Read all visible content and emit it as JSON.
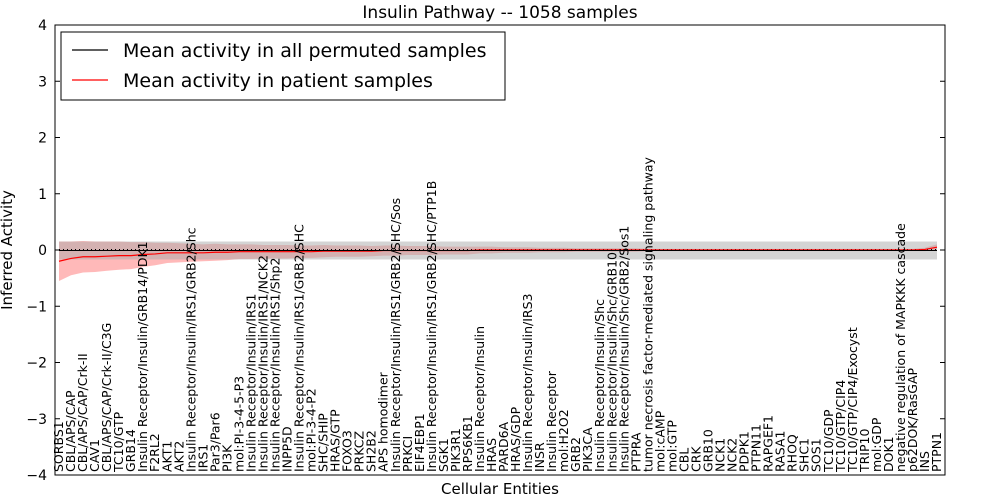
{
  "chart_data": {
    "type": "line",
    "title": "Insulin Pathway -- 1058 samples",
    "xlabel": "Cellular Entities",
    "ylabel": "Inferred Activity",
    "ylim": [
      -4,
      4
    ],
    "yticks": [
      -4,
      -3,
      -2,
      -1,
      0,
      1,
      2,
      3,
      4
    ],
    "ytick_labels": [
      "−4",
      "−3",
      "−2",
      "−1",
      "0",
      "1",
      "2",
      "3",
      "4"
    ],
    "legend": {
      "position": "top-left",
      "entries": [
        {
          "label": "Mean activity in all permuted samples",
          "color": "#000000"
        },
        {
          "label": "Mean activity in patient samples",
          "color": "#ff0000"
        }
      ]
    },
    "colors": {
      "permuted_line": "#000000",
      "patient_line": "#ff0000",
      "permuted_band": "#aaaaaa",
      "patient_band": "#ff8080"
    },
    "entities": [
      "SORBS1",
      "CBL/APS/CAP",
      "CBL/APS/CAP/Crk-II",
      "CAV1",
      "CBL/APS/CAP/Crk-II/C3G",
      "TC10/GTP",
      "GRB14",
      "Insulin Receptor/Insulin/GRB14/PDK1",
      "F2RL2",
      "AKT1",
      "AKT2",
      "Insulin Receptor/Insulin/IRS1/GRB2/Shc",
      "IRS1",
      "Par3/Par6",
      "PI3K",
      "mol:PI-3-4-5-P3",
      "Insulin Receptor/Insulin/IRS1",
      "Insulin Receptor/Insulin/IRS1/NCK2",
      "Insulin Receptor/Insulin/IRS1/Shp2",
      "INPP5D",
      "Insulin Receptor/Insulin/IRS1/GRB2/SHC",
      "mol:PI-3-4-P2",
      "SHC/SHIP",
      "HRAS/GTP",
      "FOXO3",
      "PRKCZ",
      "SH2B2",
      "APS homodimer",
      "Insulin Receptor/Insulin/IRS1/GRB2/SHC/Sos",
      "PRKCI",
      "EIF4EBP1",
      "Insulin Receptor/Insulin/IRS1/GRB2/SHC/PTP1B",
      "SGK1",
      "PIK3R1",
      "RPS6KB1",
      "Insulin Receptor/Insulin",
      "HRAS",
      "PARD6A",
      "HRAS/GDP",
      "Insulin Receptor/Insulin/IRS3",
      "INSR",
      "Insulin Receptor",
      "mol:H2O2",
      "GRB2",
      "PIK3CA",
      "Insulin Receptor/Insulin/Shc",
      "Insulin Receptor/Insulin/Shc/GRB10",
      "Insulin Receptor/Insulin/Shc/GRB2/Sos1",
      "PTPRA",
      "tumor necrosis factor-mediated signaling pathway",
      "mol:cAMP",
      "mol:GTP",
      "CBL",
      "CRK",
      "GRB10",
      "NCK1",
      "NCK2",
      "PDPK1",
      "PTPN11",
      "RAPGEF1",
      "RASA1",
      "RHOQ",
      "SHC1",
      "SOS1",
      "TC10/GDP",
      "TC10/GTP/CIP4",
      "TC10/GTP/CIP4/Exocyst",
      "TRIP10",
      "mol:GDP",
      "DOK1",
      "negative regulation of MAPKKK cascade",
      "p62DOK/RasGAP",
      "INS",
      "PTPN1"
    ],
    "series": [
      {
        "name": "Mean activity in patient samples",
        "values": [
          -0.2,
          -0.15,
          -0.12,
          -0.12,
          -0.11,
          -0.1,
          -0.1,
          -0.08,
          -0.07,
          -0.05,
          -0.05,
          -0.05,
          -0.05,
          -0.04,
          -0.04,
          -0.03,
          -0.03,
          -0.03,
          -0.03,
          -0.03,
          -0.03,
          -0.03,
          -0.02,
          -0.02,
          -0.02,
          -0.02,
          -0.02,
          -0.01,
          -0.01,
          -0.01,
          -0.01,
          -0.01,
          -0.01,
          -0.01,
          -0.01,
          0,
          0,
          0,
          0,
          0,
          0,
          0,
          0,
          0,
          0,
          0,
          0,
          0,
          0,
          0,
          0,
          0,
          0,
          0,
          0,
          0,
          0,
          0,
          0,
          0,
          0,
          0,
          0,
          0,
          0,
          0,
          0,
          0,
          0,
          0,
          0,
          0,
          0.01,
          0.05
        ],
        "band": [
          0.35,
          0.3,
          0.28,
          0.27,
          0.26,
          0.25,
          0.24,
          0.22,
          0.2,
          0.18,
          0.17,
          0.16,
          0.15,
          0.15,
          0.14,
          0.13,
          0.13,
          0.12,
          0.12,
          0.12,
          0.11,
          0.11,
          0.11,
          0.1,
          0.1,
          0.1,
          0.09,
          0.09,
          0.09,
          0.08,
          0.08,
          0.08,
          0.07,
          0.07,
          0.07,
          0.06,
          0.06,
          0.05,
          0.05,
          0.05,
          0.04,
          0.04,
          0.04,
          0.03,
          0.03,
          0.03,
          0.03,
          0.03,
          0.03,
          0.02,
          0.02,
          0.02,
          0.02,
          0.02,
          0.02,
          0.02,
          0.02,
          0.02,
          0.02,
          0.02,
          0.02,
          0.02,
          0.02,
          0.02,
          0.02,
          0.02,
          0.02,
          0.02,
          0.02,
          0.02,
          0.02,
          0.02,
          0.03,
          0.05
        ]
      },
      {
        "name": "Mean activity in all permuted samples",
        "values": [
          -0.01,
          -0.01,
          -0.01,
          -0.01,
          -0.01,
          -0.01,
          -0.01,
          -0.01,
          -0.01,
          -0.01,
          -0.01,
          -0.01,
          -0.01,
          -0.01,
          -0.01,
          -0.01,
          -0.01,
          -0.01,
          -0.01,
          -0.01,
          -0.01,
          -0.01,
          -0.01,
          -0.01,
          -0.01,
          -0.01,
          -0.01,
          -0.01,
          -0.01,
          -0.01,
          -0.01,
          -0.01,
          -0.01,
          -0.01,
          -0.01,
          -0.01,
          -0.01,
          -0.01,
          -0.01,
          -0.01,
          -0.01,
          -0.01,
          -0.01,
          -0.01,
          -0.01,
          -0.01,
          -0.01,
          -0.01,
          -0.01,
          -0.01,
          -0.01,
          -0.01,
          -0.01,
          -0.01,
          -0.01,
          -0.01,
          -0.01,
          -0.01,
          -0.01,
          -0.01,
          -0.01,
          -0.01,
          -0.01,
          -0.01,
          -0.01,
          -0.01,
          -0.01,
          -0.01,
          -0.01,
          -0.01,
          -0.01,
          -0.01,
          -0.01,
          -0.01
        ],
        "band": [
          0.16,
          0.16,
          0.16,
          0.16,
          0.16,
          0.16,
          0.16,
          0.16,
          0.16,
          0.16,
          0.16,
          0.16,
          0.16,
          0.16,
          0.16,
          0.16,
          0.16,
          0.16,
          0.16,
          0.16,
          0.16,
          0.16,
          0.16,
          0.16,
          0.16,
          0.16,
          0.16,
          0.16,
          0.16,
          0.16,
          0.16,
          0.16,
          0.16,
          0.16,
          0.16,
          0.16,
          0.16,
          0.16,
          0.16,
          0.16,
          0.16,
          0.16,
          0.16,
          0.16,
          0.16,
          0.16,
          0.16,
          0.16,
          0.16,
          0.16,
          0.16,
          0.16,
          0.16,
          0.16,
          0.16,
          0.16,
          0.16,
          0.16,
          0.16,
          0.16,
          0.16,
          0.16,
          0.16,
          0.16,
          0.16,
          0.16,
          0.16,
          0.16,
          0.16,
          0.16,
          0.16,
          0.16,
          0.16,
          0.16
        ]
      }
    ]
  }
}
